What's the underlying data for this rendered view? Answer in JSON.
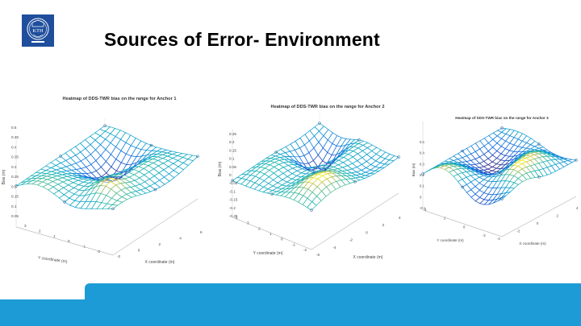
{
  "slide": {
    "title": "Sources of Error- Environment"
  },
  "logo": {
    "text": "KTH",
    "icon": "kth-crest-icon",
    "color": "#1f4e9c"
  },
  "footer": {
    "color": "#1d9bd7"
  },
  "plots": [
    {
      "title": "Heatmap of DDS-TWR bias on the range for Anchor 1",
      "zlabel": "Bias (m)",
      "ylabel": "Y coordinate (m)",
      "xlabel": "X coordinate (m)",
      "zticks": [
        "0.5",
        "0.45",
        "0.4",
        "0.35",
        "0.3",
        "0.25",
        "0.2",
        "0.15",
        "0.1",
        "0.05"
      ],
      "yticks": [
        "3",
        "2",
        "1",
        "0",
        "-1",
        "-2"
      ],
      "xticks": [
        "-2",
        "0",
        "2",
        "4",
        "6"
      ]
    },
    {
      "title": "Heatmap of DDS-TWR bias on the range for Anchor 2",
      "zlabel": "Bias (m)",
      "ylabel": "Y coordinate (m)",
      "xlabel": "X coordinate (m)",
      "zticks": [
        "0.25",
        "0.2",
        "0.15",
        "0.1",
        "0.05",
        "0",
        "-0.05",
        "-0.1",
        "-0.15",
        "-0.2",
        "-0.25"
      ],
      "yticks": [
        "4",
        "3",
        "2",
        "1",
        "0",
        "-1",
        "-2"
      ],
      "xticks": [
        "-6",
        "-4",
        "-2",
        "0",
        "2",
        "4"
      ]
    },
    {
      "title": "Heatmap of SDS-TWR bias on the range for Anchor 3",
      "zlabel": "Bias (m)",
      "ylabel": "Y coordinate (m)",
      "xlabel": "X coordinate (m)",
      "zticks": [
        "0.5",
        "0.4",
        "0.3",
        "0.2",
        "0.1",
        "0",
        "-0.1"
      ],
      "yticks": [
        "4",
        "2",
        "0",
        "-2"
      ],
      "xticks": [
        "-4",
        "-2",
        "0",
        "2",
        "4"
      ]
    }
  ]
}
